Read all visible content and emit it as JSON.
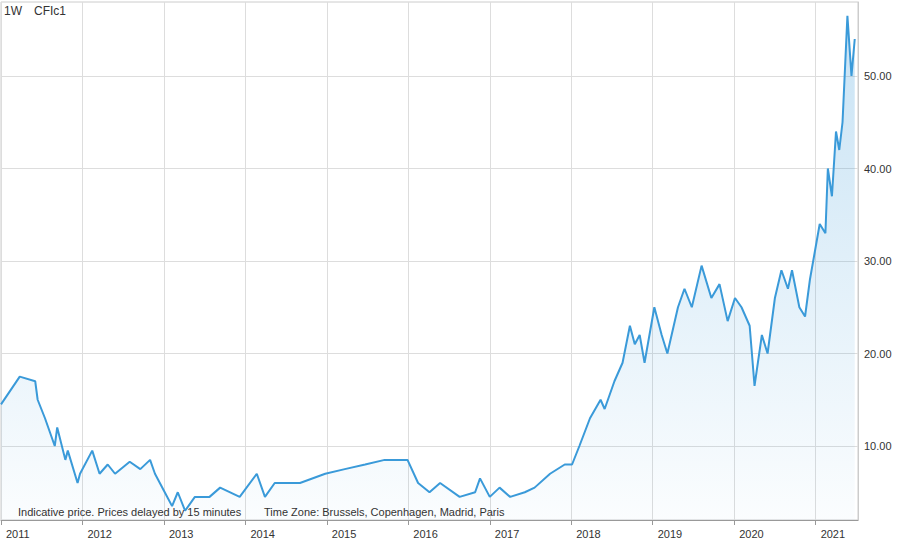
{
  "chart_data": {
    "type": "area",
    "title": "CFIc1",
    "annotations": [
      "1W",
      "Indicative price. Prices delayed by 15 minutes",
      "Time Zone: Brussels, Copenhagen, Madrid, Paris"
    ],
    "x": [
      2011.0,
      2011.23,
      2011.42,
      2011.45,
      2011.54,
      2011.66,
      2011.69,
      2011.79,
      2011.82,
      2011.94,
      2011.97,
      2012.12,
      2012.21,
      2012.31,
      2012.4,
      2012.58,
      2012.71,
      2012.83,
      2012.89,
      2013.01,
      2013.1,
      2013.17,
      2013.26,
      2013.38,
      2013.56,
      2013.69,
      2013.93,
      2014.14,
      2014.24,
      2014.36,
      2014.67,
      2014.98,
      2015.22,
      2015.47,
      2015.71,
      2015.99,
      2016.12,
      2016.26,
      2016.39,
      2016.63,
      2016.82,
      2016.88,
      2017.0,
      2017.12,
      2017.25,
      2017.43,
      2017.55,
      2017.74,
      2017.92,
      2018.01,
      2018.1,
      2018.23,
      2018.36,
      2018.41,
      2018.53,
      2018.63,
      2018.72,
      2018.78,
      2018.84,
      2018.9,
      2019.02,
      2019.11,
      2019.18,
      2019.31,
      2019.39,
      2019.48,
      2019.6,
      2019.72,
      2019.82,
      2019.92,
      2020.01,
      2020.09,
      2020.19,
      2020.25,
      2020.34,
      2020.41,
      2020.5,
      2020.58,
      2020.66,
      2020.71,
      2020.8,
      2020.87,
      2020.93,
      2020.99,
      2021.05,
      2021.12,
      2021.15,
      2021.2,
      2021.25,
      2021.29,
      2021.33,
      2021.39,
      2021.44,
      2021.48
    ],
    "values": [
      14.5,
      17.5,
      17.0,
      15.0,
      13.0,
      10.0,
      12.0,
      8.5,
      9.5,
      6.0,
      7.0,
      9.5,
      7.0,
      8.0,
      7.0,
      8.3,
      7.5,
      8.5,
      7.0,
      5.0,
      3.5,
      5.0,
      3.0,
      4.5,
      4.5,
      5.5,
      4.5,
      7.0,
      4.5,
      6.0,
      6.0,
      7.0,
      7.5,
      8.0,
      8.5,
      8.5,
      6.0,
      5.0,
      6.0,
      4.5,
      5.0,
      6.5,
      4.5,
      5.5,
      4.5,
      5.0,
      5.5,
      7.0,
      8.0,
      8.0,
      10.0,
      13.0,
      15.0,
      14.0,
      17.0,
      19.0,
      23.0,
      21.0,
      22.0,
      19.0,
      25.0,
      22.0,
      20.0,
      25.0,
      27.0,
      25.0,
      29.5,
      26.0,
      27.5,
      23.5,
      26.0,
      25.0,
      23.0,
      16.5,
      22.0,
      20.0,
      26.0,
      29.0,
      27.0,
      29.0,
      25.0,
      24.0,
      28.0,
      31.0,
      34.0,
      33.0,
      40.0,
      37.0,
      44.0,
      42.0,
      45.0,
      56.5,
      50.0,
      54.0
    ],
    "color": "#3a9ad9",
    "xlim": [
      2011,
      2021.52
    ],
    "xticks": [
      2011,
      2012,
      2013,
      2014,
      2015,
      2016,
      2017,
      2018,
      2019,
      2020,
      2021
    ],
    "ylim": [
      2,
      58
    ],
    "yticks": [
      {
        "value": 10,
        "label": "10.00"
      },
      {
        "value": 20,
        "label": "20.00"
      },
      {
        "value": 30,
        "label": "30.00"
      },
      {
        "value": 40,
        "label": "40.00"
      },
      {
        "value": 50,
        "label": "50.00"
      }
    ],
    "grid": true
  }
}
